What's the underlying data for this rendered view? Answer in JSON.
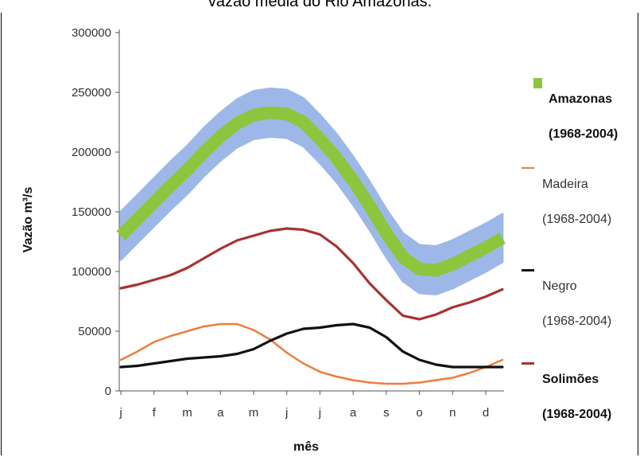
{
  "title": "vazão média do Rio Amazonas.",
  "chart_data": {
    "type": "line",
    "title": "vazão média do Rio Amazonas.",
    "xlabel": "mês",
    "ylabel": "Vazão m³/s",
    "ylim": [
      0,
      300000
    ],
    "yticks": [
      "0",
      "50000",
      "100000",
      "150000",
      "200000",
      "250000",
      "300000"
    ],
    "categories": [
      "j",
      "f",
      "m",
      "a",
      "m",
      "j",
      "j",
      "a",
      "s",
      "o",
      "n",
      "d"
    ],
    "grid": false,
    "legend_position": "right",
    "series": [
      {
        "name": "Amazonas",
        "period": "(1968-2004)",
        "color": "#8cc63f",
        "band_color": "#9db8e8",
        "x": [
          0,
          0.5,
          1,
          1.5,
          2,
          2.5,
          3,
          3.5,
          4,
          4.5,
          5,
          5.5,
          6,
          6.5,
          7,
          7.5,
          8,
          8.5,
          9,
          9.5,
          10,
          10.5,
          11,
          11.5
        ],
        "values": [
          130000,
          144000,
          158000,
          172000,
          185000,
          200000,
          213000,
          224000,
          231000,
          233000,
          232000,
          225000,
          211000,
          195000,
          176000,
          155000,
          132000,
          112000,
          102000,
          101000,
          106000,
          113000,
          120000,
          128000
        ],
        "band": 20000
      },
      {
        "name": "Madeira",
        "period": "(1968-2004)",
        "color": "#ec7d3f",
        "x": [
          0,
          0.5,
          1,
          1.5,
          2,
          2.5,
          3,
          3.5,
          4,
          4.5,
          5,
          5.5,
          6,
          6.5,
          7,
          7.5,
          8,
          8.5,
          9,
          9.5,
          10,
          10.5,
          11,
          11.5
        ],
        "values": [
          26000,
          33000,
          41000,
          46000,
          50000,
          54000,
          56000,
          56000,
          51000,
          43000,
          32000,
          23000,
          16000,
          12000,
          9000,
          7000,
          6000,
          6000,
          7000,
          9000,
          11000,
          15000,
          20000,
          26000
        ]
      },
      {
        "name": "Negro",
        "period": "(1968-2004)",
        "color": "#111111",
        "x": [
          0,
          0.5,
          1,
          1.5,
          2,
          2.5,
          3,
          3.5,
          4,
          4.5,
          5,
          5.5,
          6,
          6.5,
          7,
          7.5,
          8,
          8.5,
          9,
          9.5,
          10,
          10.5,
          11,
          11.5
        ],
        "values": [
          20000,
          21000,
          23000,
          25000,
          27000,
          28000,
          29000,
          31000,
          35000,
          42000,
          48000,
          52000,
          53000,
          55000,
          56000,
          53000,
          45000,
          33000,
          26000,
          22000,
          20000,
          20000,
          20000,
          20000
        ]
      },
      {
        "name": "Solimões",
        "period": "(1968-2004)",
        "color": "#a83232",
        "x": [
          0,
          0.5,
          1,
          1.5,
          2,
          2.5,
          3,
          3.5,
          4,
          4.5,
          5,
          5.5,
          6,
          6.5,
          7,
          7.5,
          8,
          8.5,
          9,
          9.5,
          10,
          10.5,
          11,
          11.5
        ],
        "values": [
          86000,
          89000,
          93000,
          97000,
          103000,
          111000,
          119000,
          126000,
          130000,
          134000,
          136000,
          135000,
          131000,
          121000,
          107000,
          90000,
          76000,
          63000,
          60000,
          64000,
          70000,
          74000,
          79000,
          85000
        ]
      }
    ]
  }
}
